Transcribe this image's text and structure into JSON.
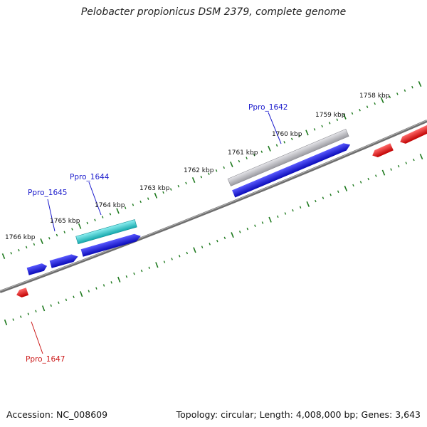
{
  "title": "Pelobacter propionicus DSM 2379, complete genome",
  "footer": {
    "accession": "Accession: NC_008609",
    "summary": "Topology: circular; Length: 4,008,000 bp; Genes: 3,643"
  },
  "colors": {
    "backbone": "#7a7a7a",
    "tick": "#1f7a1f",
    "gene_forward": "#1010e0",
    "gene_reverse": "#e01010",
    "gene_cyan": "#20c8cc",
    "gene_gray": "#b8b8bc",
    "label_blue": "#1a1acc",
    "label_red": "#cc1a1a"
  },
  "kbp_labels": [
    "1766 kbp",
    "1765 kbp",
    "1764 kbp",
    "1763 kbp",
    "1762 kbp",
    "1761 kbp",
    "1760 kbp",
    "1759 kbp",
    "1758 kbp"
  ],
  "gene_labels": [
    {
      "text": "Ppro_1645",
      "strand": "forward"
    },
    {
      "text": "Ppro_1644",
      "strand": "forward"
    },
    {
      "text": "Ppro_1642",
      "strand": "forward"
    },
    {
      "text": "Ppro_1647",
      "strand": "reverse"
    }
  ]
}
